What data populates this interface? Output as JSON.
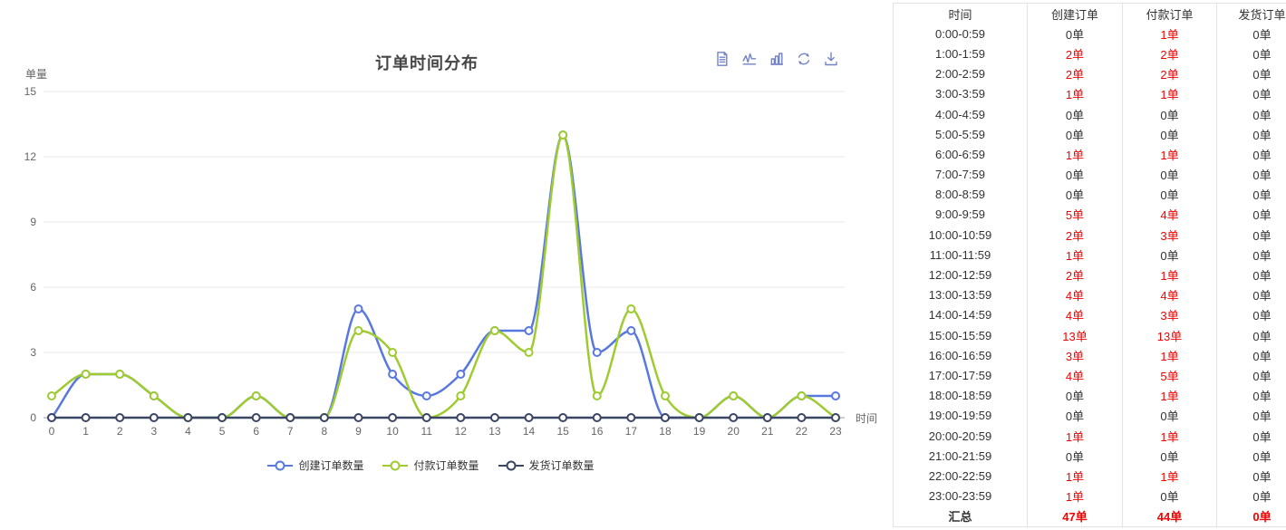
{
  "chart_data": {
    "type": "line",
    "smooth": true,
    "title": "订单时间分布",
    "xlabel": "时间",
    "ylabel": "单量",
    "x": [
      0,
      1,
      2,
      3,
      4,
      5,
      6,
      7,
      8,
      9,
      10,
      11,
      12,
      13,
      14,
      15,
      16,
      17,
      18,
      19,
      20,
      21,
      22,
      23
    ],
    "ylim": [
      0,
      15
    ],
    "yticks": [
      0,
      3,
      6,
      9,
      12,
      15
    ],
    "grid": true,
    "legend_position": "bottom",
    "series": [
      {
        "name": "创建订单数量",
        "color": "#5878e0",
        "values": [
          0,
          2,
          2,
          1,
          0,
          0,
          1,
          0,
          0,
          5,
          2,
          1,
          2,
          4,
          4,
          13,
          3,
          4,
          0,
          0,
          1,
          0,
          1,
          1
        ]
      },
      {
        "name": "付款订单数量",
        "color": "#9ecb2f",
        "values": [
          1,
          2,
          2,
          1,
          0,
          0,
          1,
          0,
          0,
          4,
          3,
          0,
          1,
          4,
          3,
          13,
          1,
          5,
          1,
          0,
          1,
          0,
          1,
          0
        ]
      },
      {
        "name": "发货订单数量",
        "color": "#3b4664",
        "values": [
          0,
          0,
          0,
          0,
          0,
          0,
          0,
          0,
          0,
          0,
          0,
          0,
          0,
          0,
          0,
          0,
          0,
          0,
          0,
          0,
          0,
          0,
          0,
          0
        ]
      }
    ]
  },
  "toolbox": {
    "color": "#7283c5",
    "icons": [
      "data-view-icon",
      "line-chart-toggle-icon",
      "bar-chart-toggle-icon",
      "restore-icon",
      "save-image-icon"
    ]
  },
  "table": {
    "headers": [
      "时间",
      "创建订单",
      "付款订单",
      "发货订单"
    ],
    "unit": "单",
    "highlight_color": "#f40000",
    "rows": [
      {
        "time": "0:00-0:59",
        "values": [
          0,
          1,
          0
        ]
      },
      {
        "time": "1:00-1:59",
        "values": [
          2,
          2,
          0
        ]
      },
      {
        "time": "2:00-2:59",
        "values": [
          2,
          2,
          0
        ]
      },
      {
        "time": "3:00-3:59",
        "values": [
          1,
          1,
          0
        ]
      },
      {
        "time": "4:00-4:59",
        "values": [
          0,
          0,
          0
        ]
      },
      {
        "time": "5:00-5:59",
        "values": [
          0,
          0,
          0
        ]
      },
      {
        "time": "6:00-6:59",
        "values": [
          1,
          1,
          0
        ]
      },
      {
        "time": "7:00-7:59",
        "values": [
          0,
          0,
          0
        ]
      },
      {
        "time": "8:00-8:59",
        "values": [
          0,
          0,
          0
        ]
      },
      {
        "time": "9:00-9:59",
        "values": [
          5,
          4,
          0
        ]
      },
      {
        "time": "10:00-10:59",
        "values": [
          2,
          3,
          0
        ]
      },
      {
        "time": "11:00-11:59",
        "values": [
          1,
          0,
          0
        ]
      },
      {
        "time": "12:00-12:59",
        "values": [
          2,
          1,
          0
        ]
      },
      {
        "time": "13:00-13:59",
        "values": [
          4,
          4,
          0
        ]
      },
      {
        "time": "14:00-14:59",
        "values": [
          4,
          3,
          0
        ]
      },
      {
        "time": "15:00-15:59",
        "values": [
          13,
          13,
          0
        ]
      },
      {
        "time": "16:00-16:59",
        "values": [
          3,
          1,
          0
        ]
      },
      {
        "time": "17:00-17:59",
        "values": [
          4,
          5,
          0
        ]
      },
      {
        "time": "18:00-18:59",
        "values": [
          0,
          1,
          0
        ]
      },
      {
        "time": "19:00-19:59",
        "values": [
          0,
          0,
          0
        ]
      },
      {
        "time": "20:00-20:59",
        "values": [
          1,
          1,
          0
        ]
      },
      {
        "time": "21:00-21:59",
        "values": [
          0,
          0,
          0
        ]
      },
      {
        "time": "22:00-22:59",
        "values": [
          1,
          1,
          0
        ]
      },
      {
        "time": "23:00-23:59",
        "values": [
          1,
          0,
          0
        ]
      }
    ],
    "summary": {
      "label": "汇总",
      "values": [
        47,
        44,
        0
      ]
    }
  }
}
